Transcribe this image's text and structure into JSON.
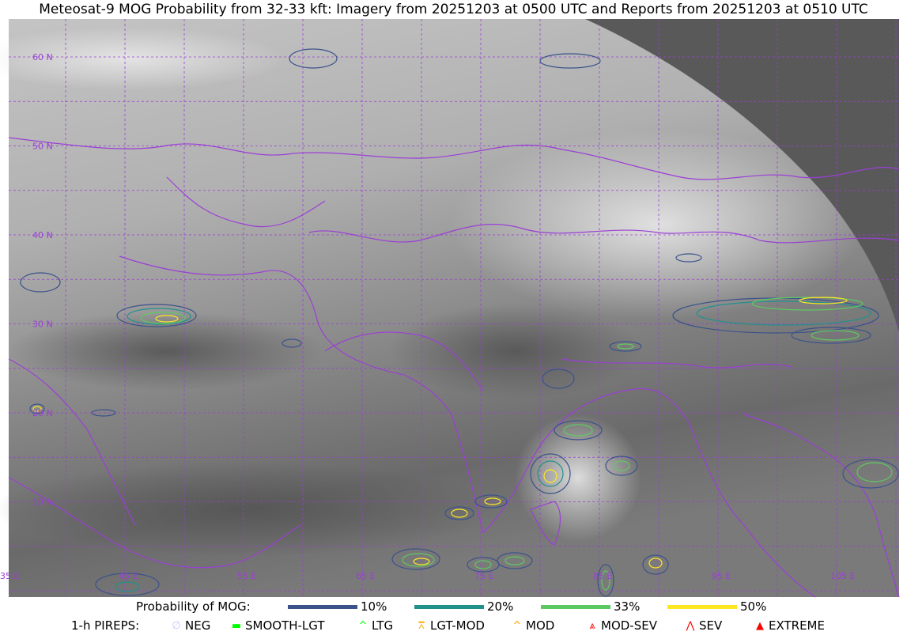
{
  "title": "Meteosat-9 MOG Probability from 32-33 kft: Imagery from 20251203 at 0500 UTC and Reports from 20251203 at 0510 UTC",
  "map": {
    "lat_labels": [
      "60 N",
      "50 N",
      "40 N",
      "30 N",
      "20 N",
      "10 N"
    ],
    "lon_labels": [
      "35 E",
      "45 E",
      "55 E",
      "65 E",
      "75 E",
      "85 E",
      "95 E",
      "105 E"
    ],
    "colors": {
      "border": "#9b3fd6",
      "grid": "#9b3fd6",
      "space": "#595959"
    }
  },
  "legend": {
    "mog_title": "Probability of MOG:",
    "mog_levels": [
      {
        "label": "10%",
        "color": "#3b528b"
      },
      {
        "label": "20%",
        "color": "#21918c"
      },
      {
        "label": "33%",
        "color": "#5ec962"
      },
      {
        "label": "50%",
        "color": "#fde725"
      }
    ],
    "pirep_title": "1-h PIREPS:",
    "pireps": [
      {
        "label": "NEG",
        "color": "#c8c8ff",
        "icon": "null-circle-icon"
      },
      {
        "label": "SMOOTH-LGT",
        "color": "#00ff00",
        "icon": "dash-icon"
      },
      {
        "label": "LTG",
        "color": "#00ff00",
        "icon": "caret-icon"
      },
      {
        "label": "LGT-MOD",
        "color": "#ffa500",
        "icon": "caret-bar-icon"
      },
      {
        "label": "MOD",
        "color": "#ffa500",
        "icon": "caret-icon"
      },
      {
        "label": "MOD-SEV",
        "color": "#ff0000",
        "icon": "double-caret-bar-icon"
      },
      {
        "label": "SEV",
        "color": "#ff0000",
        "icon": "double-caret-icon"
      },
      {
        "label": "EXTREME",
        "color": "#ff0000",
        "icon": "filled-triangle-icon"
      }
    ]
  }
}
